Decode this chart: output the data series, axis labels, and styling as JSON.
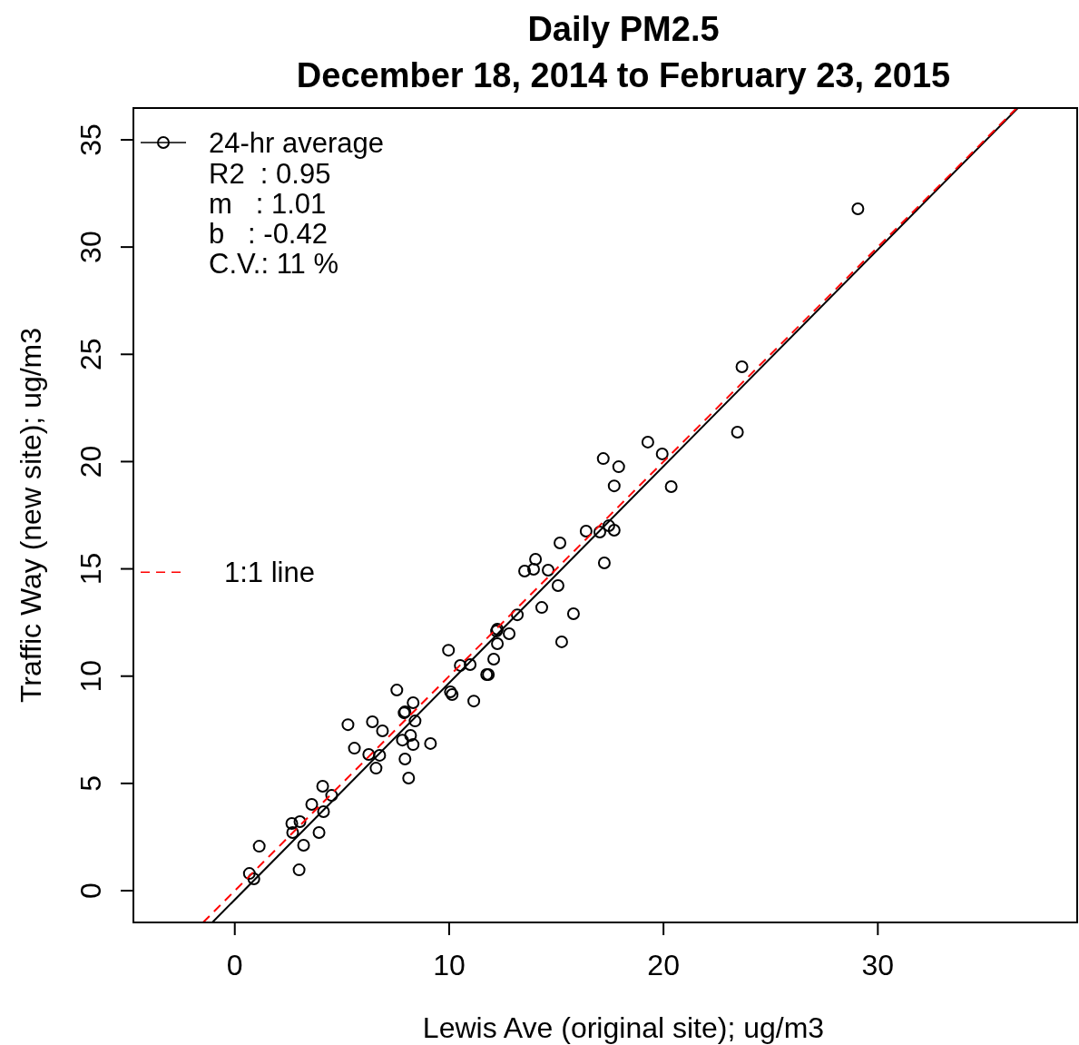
{
  "chart_data": {
    "type": "scatter",
    "title": "Daily PM2.5\nDecember 18, 2014 to February 23, 2015",
    "xlabel": "Lewis Ave (original site); ug/m3",
    "ylabel": "Traffic Way (new site); ug/m3",
    "xlim": [
      -4.73,
      39.3
    ],
    "ylim": [
      -1.48,
      36.48
    ],
    "xticks": [
      0,
      10,
      20,
      30
    ],
    "yticks": [
      0,
      5,
      10,
      15,
      20,
      25,
      30,
      35
    ],
    "grid": false,
    "legend": "top left",
    "marker": "circle",
    "annotations": [
      "R2  : 0.95",
      "m   : 1.01",
      "b   : -0.42",
      "C.V.: 11 %"
    ],
    "series": [
      {
        "name": "24-hr average",
        "color": "#000000",
        "x": [
          0.68,
          0.89,
          1.14,
          2.66,
          2.7,
          3.04,
          3.0,
          3.21,
          3.59,
          3.93,
          4.1,
          4.14,
          4.52,
          5.28,
          5.58,
          6.25,
          6.42,
          6.59,
          6.76,
          6.89,
          7.56,
          7.82,
          7.9,
          7.94,
          7.94,
          8.11,
          8.2,
          8.32,
          8.32,
          8.41,
          9.13,
          9.97,
          10.06,
          10.14,
          10.52,
          10.98,
          11.15,
          11.75,
          11.83,
          12.08,
          12.21,
          12.25,
          12.25,
          12.8,
          13.18,
          13.52,
          13.94,
          14.03,
          14.32,
          14.62,
          15.08,
          15.17,
          15.25,
          15.8,
          16.39,
          17.03,
          17.19,
          17.24,
          17.45,
          17.7,
          17.7,
          17.91,
          19.27,
          19.94,
          20.36,
          23.45,
          23.66,
          29.07
        ],
        "values": [
          0.8,
          0.55,
          2.07,
          3.13,
          2.71,
          3.22,
          0.97,
          2.12,
          4.02,
          2.71,
          4.87,
          3.68,
          4.44,
          7.74,
          6.64,
          6.35,
          7.87,
          5.71,
          6.31,
          7.45,
          9.35,
          7.02,
          8.29,
          6.14,
          8.34,
          5.25,
          7.24,
          8.76,
          6.81,
          7.91,
          6.86,
          11.21,
          9.27,
          9.14,
          10.5,
          10.54,
          8.84,
          10.07,
          10.07,
          10.79,
          12.1,
          12.19,
          11.51,
          11.98,
          12.86,
          14.9,
          14.98,
          15.45,
          13.2,
          14.94,
          14.22,
          16.21,
          11.6,
          12.91,
          16.76,
          16.72,
          20.14,
          15.28,
          17.01,
          18.87,
          16.8,
          19.76,
          20.91,
          20.36,
          18.83,
          21.37,
          24.42,
          31.78
        ]
      },
      {
        "type": "line",
        "marker": "none",
        "color": "#000000",
        "line_style": "solid",
        "x": [
          -1.05,
          36.53
        ],
        "values": [
          -1.48,
          36.48
        ]
      },
      {
        "name": "1:1 line",
        "type": "line",
        "marker": "none",
        "color": "#ff0000",
        "line_style": "dashed",
        "x": [
          -1.48,
          36.48
        ],
        "values": [
          -1.48,
          36.48
        ]
      }
    ]
  }
}
